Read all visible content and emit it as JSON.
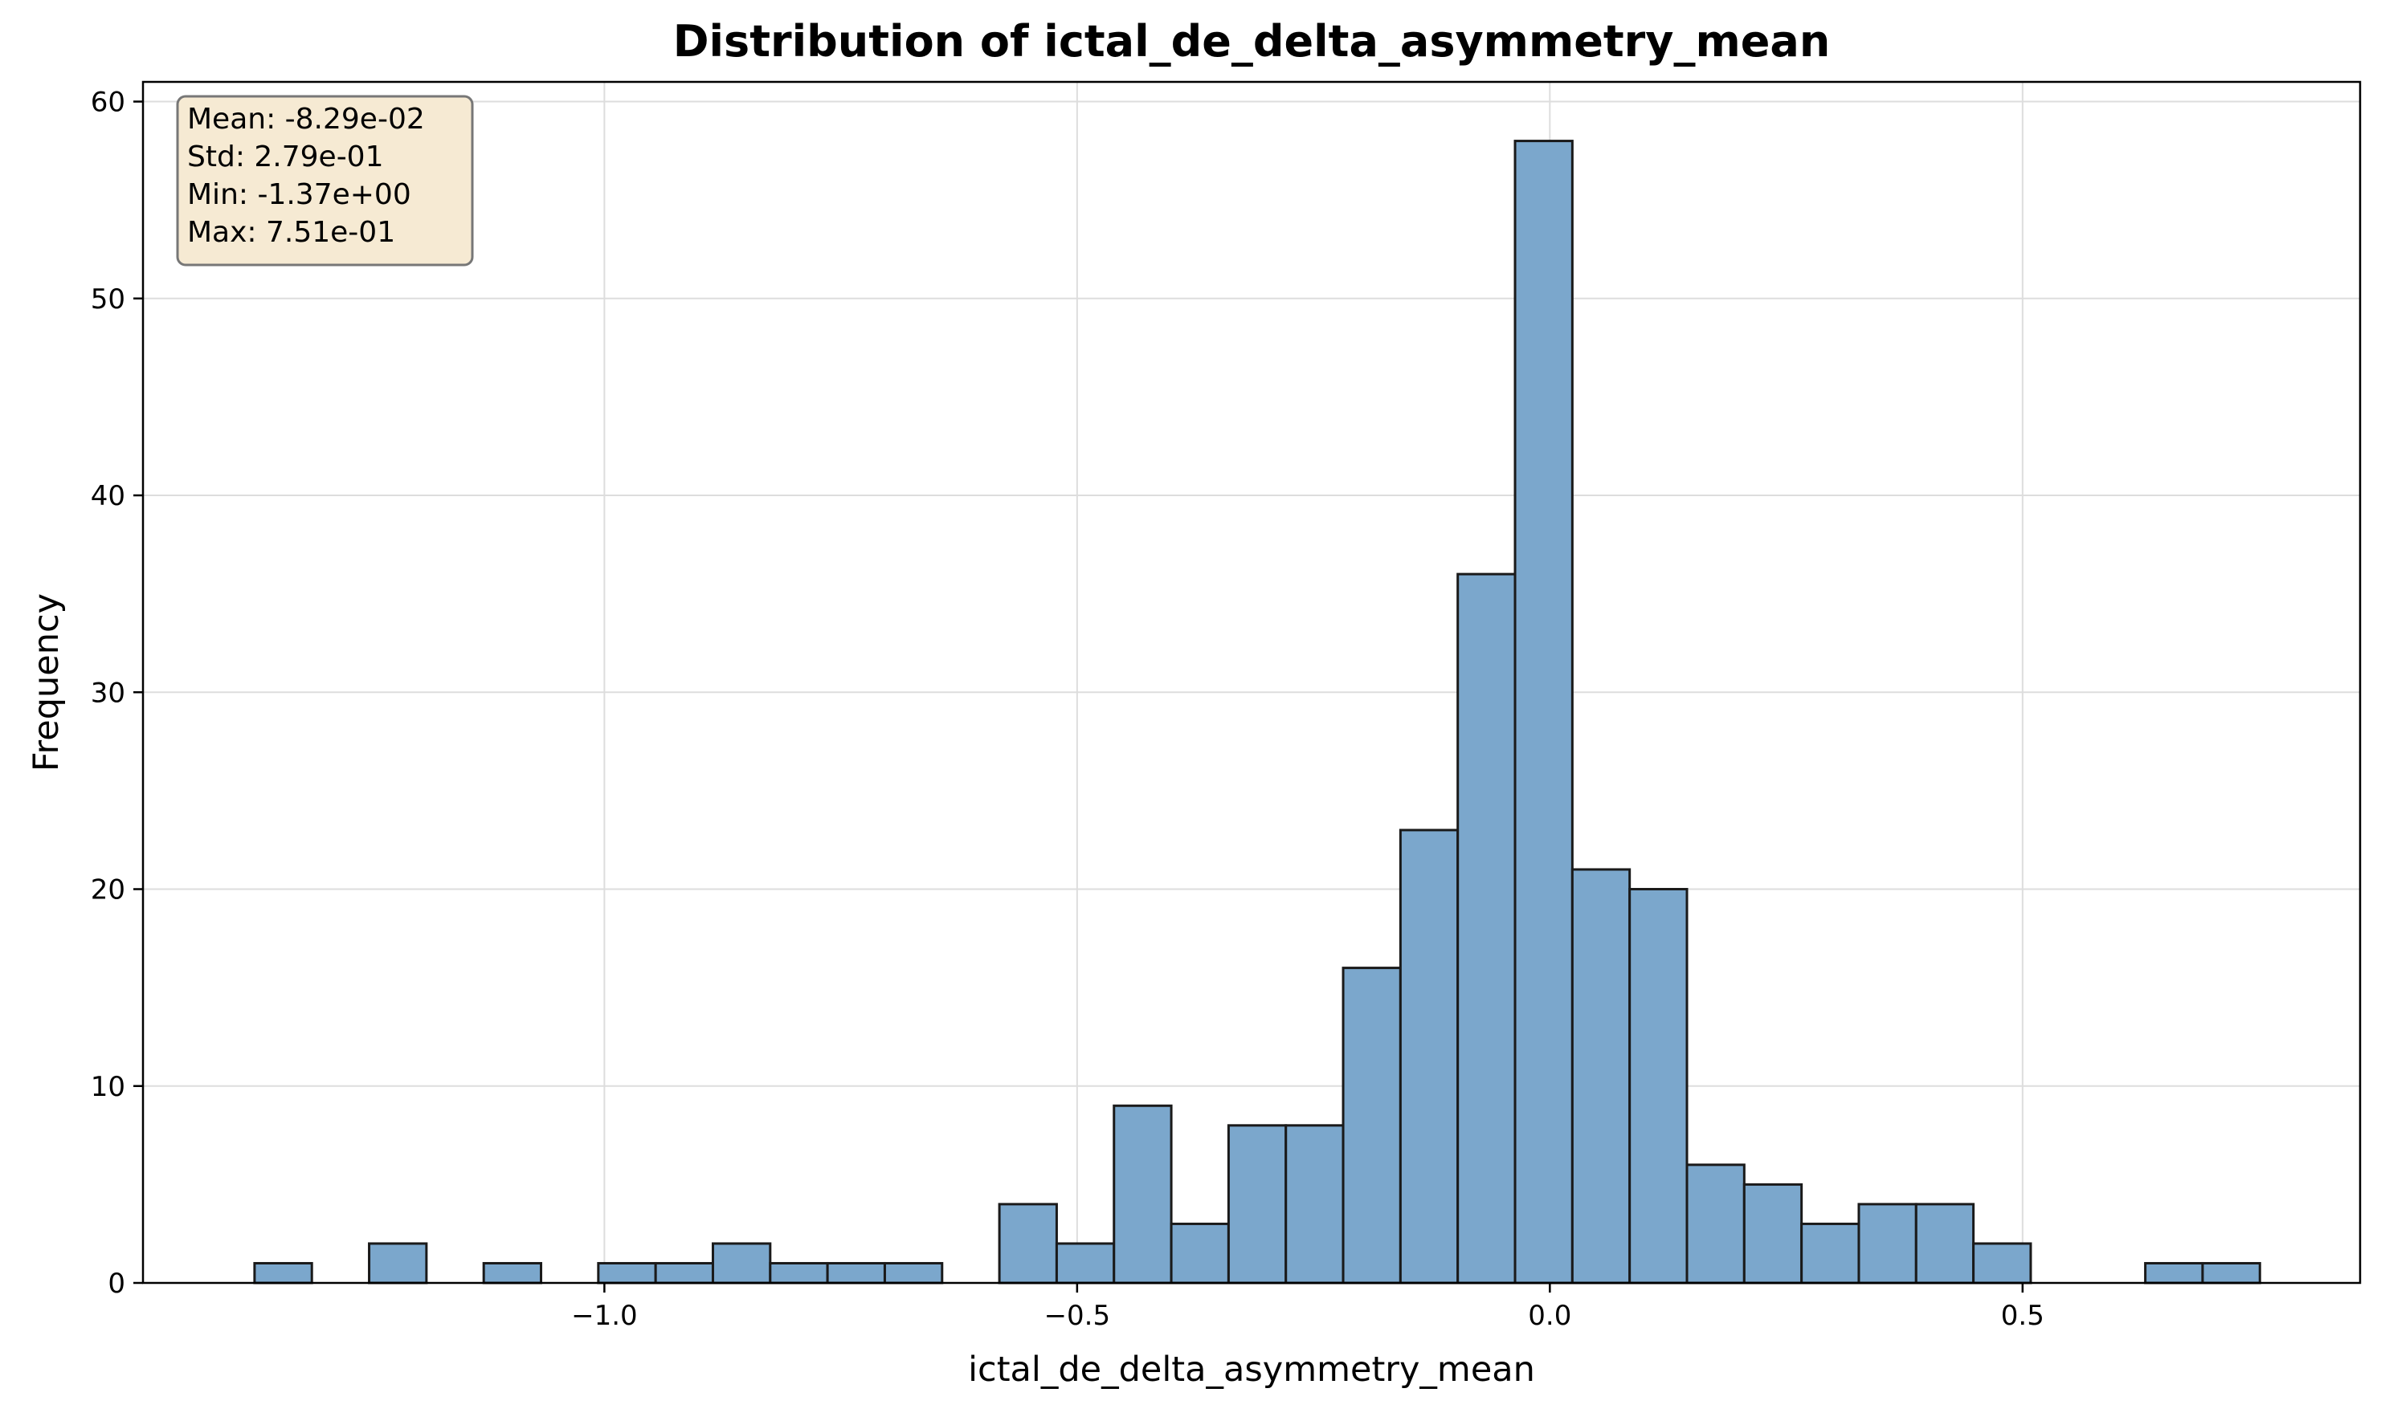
{
  "chart_data": {
    "type": "bar",
    "title": "Distribution of ictal_de_delta_asymmetry_mean",
    "xlabel": "ictal_de_delta_asymmetry_mean",
    "ylabel": "Frequency",
    "xlim": [
      -1.488,
      0.857
    ],
    "ylim": [
      0,
      61
    ],
    "grid": true,
    "bar_color": "#7ba7cc",
    "edge_color": "#1a1a1a",
    "x_ticks": [
      {
        "value": -1.0,
        "label": "−1.0"
      },
      {
        "value": -0.5,
        "label": "−0.5"
      },
      {
        "value": 0.0,
        "label": "0.0"
      },
      {
        "value": 0.5,
        "label": "0.5"
      }
    ],
    "y_ticks": [
      {
        "value": 0,
        "label": "0"
      },
      {
        "value": 10,
        "label": "10"
      },
      {
        "value": 20,
        "label": "20"
      },
      {
        "value": 30,
        "label": "30"
      },
      {
        "value": 40,
        "label": "40"
      },
      {
        "value": 50,
        "label": "50"
      },
      {
        "value": 60,
        "label": "60"
      }
    ],
    "bins": {
      "start": -1.37,
      "width": 0.0606,
      "counts": [
        1,
        0,
        2,
        0,
        1,
        0,
        1,
        1,
        2,
        1,
        1,
        1,
        0,
        4,
        2,
        9,
        3,
        8,
        8,
        16,
        23,
        36,
        58,
        21,
        20,
        6,
        5,
        3,
        4,
        4,
        2,
        0,
        0,
        1,
        1
      ]
    },
    "stats_box": {
      "lines": [
        "Mean: -8.29e-02",
        "Std: 2.79e-01",
        "Min: -1.37e+00",
        "Max: 7.51e-01"
      ],
      "placement": "top-left",
      "background": "#f6ead3"
    }
  }
}
